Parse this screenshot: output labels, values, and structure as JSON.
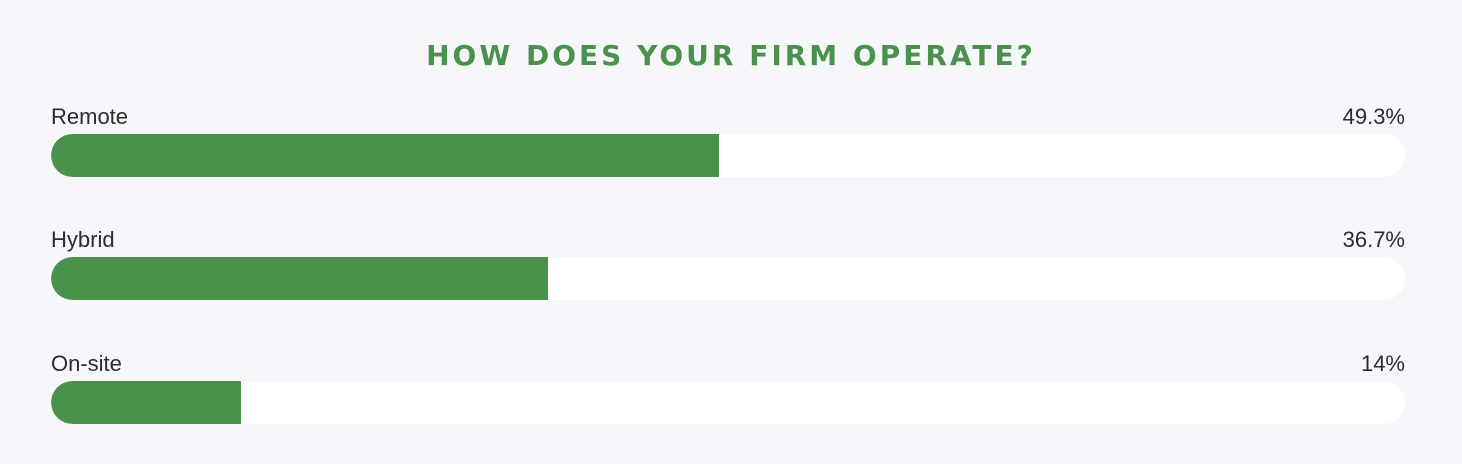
{
  "chart_data": {
    "type": "bar",
    "orientation": "horizontal",
    "title": "HOW DOES YOUR FIRM OPERATE?",
    "categories": [
      "Remote",
      "Hybrid",
      "On-site"
    ],
    "values": [
      49.3,
      36.7,
      14
    ],
    "value_labels": [
      "49.3%",
      "36.7%",
      "14%"
    ],
    "unit": "%",
    "xlim": [
      0,
      100
    ],
    "grid": false,
    "bar_color": "#4a914c",
    "track_color": "#ffffff"
  }
}
